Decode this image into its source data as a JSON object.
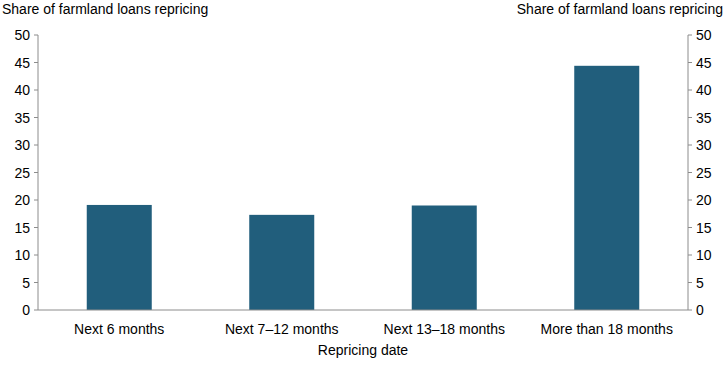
{
  "chart_data": {
    "type": "bar",
    "ylabel": "Share of farmland loans repricing",
    "y2label": "Share of farmland loans repricing",
    "xlabel": "Repricing date",
    "categories": [
      "Next 6 months",
      "Next 7–12 months",
      "Next 13–18 months",
      "More than 18 months"
    ],
    "values": [
      19.1,
      17.3,
      19.0,
      44.4
    ],
    "color": "#215e7c",
    "ylim": [
      0,
      50
    ],
    "yticks": [
      0,
      5,
      10,
      15,
      20,
      25,
      30,
      35,
      40,
      45,
      50
    ],
    "y2lim": [
      0,
      50
    ],
    "y2ticks": [
      0,
      5,
      10,
      15,
      20,
      25,
      30,
      35,
      40,
      45,
      50
    ],
    "grid": false
  }
}
